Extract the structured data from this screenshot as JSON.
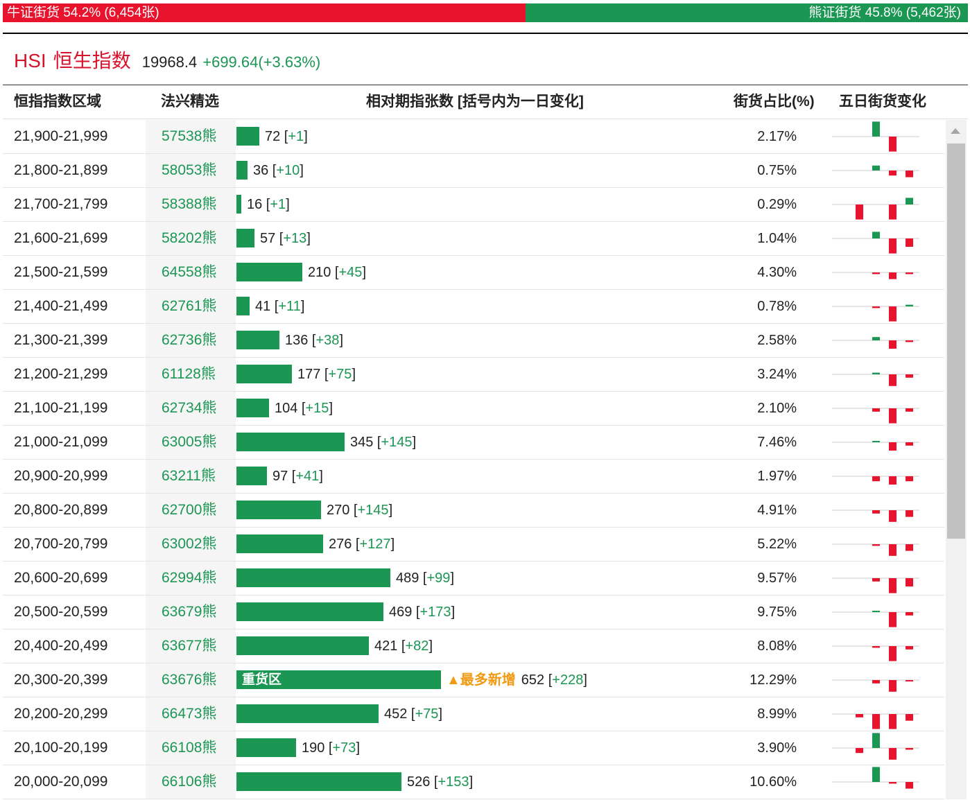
{
  "summary": {
    "bull_label": "牛证街货 54.2% (6,454张)",
    "bull_pct": 54.2,
    "bear_label": "熊证街货 45.8% (5,462张)",
    "bear_pct": 45.8
  },
  "index": {
    "code": "HSI",
    "name": "恒生指数",
    "price": "19968.4",
    "change": "+699.64(+3.63%)"
  },
  "columns": {
    "range": "恒指指数区域",
    "warrant": "法兴精选",
    "bar": "相对期指张数 [括号内为一日变化]",
    "pct": "街货占比(%)",
    "five": "五日街货变化"
  },
  "colors": {
    "bull": "#e8132c",
    "bear": "#1b9653",
    "accent": "#f19a14"
  },
  "rows": [
    {
      "range": "21,900-21,999",
      "warrant": "57538熊",
      "count": "72",
      "change": "+1",
      "pct": "2.17%",
      "five": [
        0,
        0,
        0.9,
        -0.9,
        0,
        0.1
      ]
    },
    {
      "range": "21,800-21,899",
      "warrant": "58053熊",
      "count": "36",
      "change": "+10",
      "pct": "0.75%",
      "five": [
        0,
        0,
        0.3,
        -0.3,
        -0.4,
        0.9
      ]
    },
    {
      "range": "21,700-21,799",
      "warrant": "58388熊",
      "count": "16",
      "change": "+1",
      "pct": "0.29%",
      "five": [
        0,
        -0.9,
        0,
        -0.9,
        0.4,
        0
      ]
    },
    {
      "range": "21,600-21,699",
      "warrant": "58202熊",
      "count": "57",
      "change": "+13",
      "pct": "1.04%",
      "five": [
        0,
        0,
        0.4,
        -0.9,
        -0.5,
        0.3
      ]
    },
    {
      "range": "21,500-21,599",
      "warrant": "64558熊",
      "count": "210",
      "change": "+45",
      "pct": "4.30%",
      "five": [
        0,
        0,
        -0.1,
        -0.4,
        -0.1,
        0.9
      ]
    },
    {
      "range": "21,400-21,499",
      "warrant": "62761熊",
      "count": "41",
      "change": "+11",
      "pct": "0.78%",
      "five": [
        0,
        0,
        -0.1,
        -0.9,
        0.1,
        0.9
      ]
    },
    {
      "range": "21,300-21,399",
      "warrant": "62736熊",
      "count": "136",
      "change": "+38",
      "pct": "2.58%",
      "five": [
        0,
        0,
        0.2,
        -0.5,
        -0.1,
        0.9
      ]
    },
    {
      "range": "21,200-21,299",
      "warrant": "61128熊",
      "count": "177",
      "change": "+75",
      "pct": "3.24%",
      "five": [
        0,
        0,
        0.1,
        -0.7,
        -0.2,
        0.9
      ]
    },
    {
      "range": "21,100-21,199",
      "warrant": "62734熊",
      "count": "104",
      "change": "+15",
      "pct": "2.10%",
      "five": [
        0,
        0,
        -0.2,
        -0.9,
        -0.2,
        0.4
      ]
    },
    {
      "range": "21,000-21,099",
      "warrant": "63005熊",
      "count": "345",
      "change": "+145",
      "pct": "7.46%",
      "five": [
        0,
        0,
        0.05,
        -0.5,
        -0.2,
        0.9
      ]
    },
    {
      "range": "20,900-20,999",
      "warrant": "63211熊",
      "count": "97",
      "change": "+41",
      "pct": "1.97%",
      "five": [
        0,
        0,
        -0.3,
        -0.5,
        -0.3,
        0.9
      ]
    },
    {
      "range": "20,800-20,899",
      "warrant": "62700熊",
      "count": "270",
      "change": "+145",
      "pct": "4.91%",
      "five": [
        0,
        0,
        -0.2,
        -0.7,
        -0.4,
        0.9
      ]
    },
    {
      "range": "20,700-20,799",
      "warrant": "63002熊",
      "count": "276",
      "change": "+127",
      "pct": "5.22%",
      "five": [
        0,
        0,
        -0.1,
        -0.7,
        -0.4,
        0.9
      ]
    },
    {
      "range": "20,600-20,699",
      "warrant": "62994熊",
      "count": "489",
      "change": "+99",
      "pct": "9.57%",
      "five": [
        0,
        0,
        -0.2,
        -0.9,
        -0.5,
        0.6
      ]
    },
    {
      "range": "20,500-20,599",
      "warrant": "63679熊",
      "count": "469",
      "change": "+173",
      "pct": "9.75%",
      "five": [
        0,
        0,
        0.05,
        -0.9,
        -0.2,
        0.9
      ]
    },
    {
      "range": "20,400-20,499",
      "warrant": "63677熊",
      "count": "421",
      "change": "+82",
      "pct": "8.08%",
      "five": [
        0,
        0,
        -0.1,
        -0.9,
        -0.2,
        0.9
      ]
    },
    {
      "range": "20,300-20,399",
      "warrant": "63676熊",
      "count": "652",
      "change": "+228",
      "pct": "12.29%",
      "highlight": "重货区",
      "tag": "▲最多新增",
      "five": [
        0,
        0,
        -0.2,
        -0.7,
        -0.05,
        0.9
      ]
    },
    {
      "range": "20,200-20,299",
      "warrant": "66473熊",
      "count": "452",
      "change": "+75",
      "pct": "8.99%",
      "five": [
        0,
        -0.2,
        -0.9,
        -0.9,
        -0.4,
        0.4
      ]
    },
    {
      "range": "20,100-20,199",
      "warrant": "66108熊",
      "count": "190",
      "change": "+73",
      "pct": "3.90%",
      "five": [
        0,
        -0.3,
        0.9,
        -0.7,
        -0.1,
        0.7
      ]
    },
    {
      "range": "20,000-20,099",
      "warrant": "66106熊",
      "count": "526",
      "change": "+153",
      "pct": "10.60%",
      "five": [
        0,
        0,
        0.9,
        -0.1,
        -0.4,
        0.9
      ]
    }
  ]
}
